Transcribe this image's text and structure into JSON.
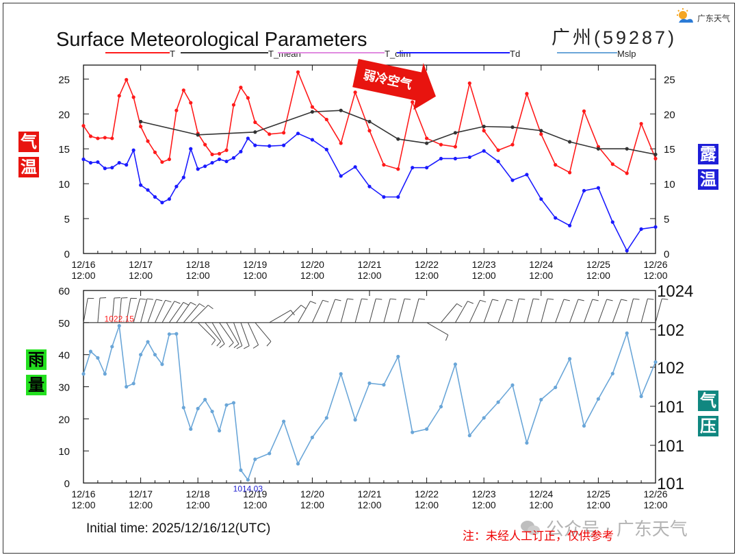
{
  "branding": {
    "logo_text": "广东天气",
    "watermark_text": "公众号 · 广东天气",
    "note": "注：未经人工订正，仅供参考",
    "initial_time": "Initial time: 2025/12/16/12(UTC)"
  },
  "labels": {
    "temp": [
      "气",
      "温"
    ],
    "dew": [
      "露",
      "温"
    ],
    "rain": [
      "雨",
      "量"
    ],
    "pres": [
      "气",
      "压"
    ],
    "arrow": "弱冷空气"
  },
  "colors": {
    "T": "#ff1a1a",
    "T_mean": "#333333",
    "T_clim": "#e08ae0",
    "Td": "#1a1aff",
    "Mslp": "#6aa6d8"
  },
  "chart_data": [
    {
      "type": "line",
      "title": "Surface Meteorological Parameters",
      "station": "广州(59287)",
      "legend": [
        "T",
        "T_mean",
        "T_clim",
        "Td",
        "Mslp"
      ],
      "x_ticks": [
        "12/16\n12:00",
        "12/17\n12:00",
        "12/18\n12:00",
        "12/19\n12:00",
        "12/20\n12:00",
        "12/21\n12:00",
        "12/22\n12:00",
        "12/23\n12:00",
        "12/24\n12:00",
        "12/25\n12:00",
        "12/26\n12:00"
      ],
      "x_range": [
        0,
        240
      ],
      "ylim": [
        0,
        27
      ],
      "y_ticks": [
        0,
        5,
        10,
        15,
        20,
        25
      ],
      "series": [
        {
          "name": "T",
          "x": [
            0,
            3,
            6,
            9,
            12,
            15,
            18,
            21,
            24,
            27,
            30,
            33,
            36,
            39,
            42,
            45,
            48,
            51,
            54,
            57,
            60,
            63,
            66,
            69,
            72,
            78,
            84,
            90,
            96,
            102,
            108,
            114,
            120,
            126,
            132,
            138,
            144,
            150,
            156,
            162,
            168,
            174,
            180,
            186,
            192,
            198,
            204,
            210,
            216,
            222,
            228,
            234,
            240
          ],
          "values": [
            18.3,
            16.8,
            16.5,
            16.6,
            16.5,
            22.6,
            24.9,
            22.4,
            18.2,
            16.1,
            14.5,
            13.1,
            13.5,
            20.5,
            23.4,
            21.6,
            17.2,
            15.6,
            14.2,
            14.3,
            14.8,
            21.3,
            23.8,
            22.3,
            18.8,
            17.1,
            17.3,
            26.0,
            21.0,
            19.2,
            15.8,
            23.1,
            17.6,
            12.7,
            12.1,
            21.7,
            16.5,
            15.6,
            15.3,
            24.4,
            17.6,
            14.8,
            15.6,
            22.9,
            17.1,
            12.7,
            11.6,
            20.4,
            15.3,
            12.8,
            11.5,
            18.6,
            13.6
          ]
        },
        {
          "name": "T_mean",
          "x": [
            24,
            48,
            72,
            96,
            108,
            120,
            132,
            144,
            156,
            168,
            180,
            192,
            204,
            216,
            228,
            240
          ],
          "values": [
            18.9,
            17.0,
            17.4,
            20.3,
            20.5,
            18.9,
            16.4,
            15.8,
            17.3,
            18.2,
            18.1,
            17.6,
            16.0,
            15.0,
            15.0,
            14.2
          ]
        },
        {
          "name": "Td",
          "x": [
            0,
            3,
            6,
            9,
            12,
            15,
            18,
            21,
            24,
            27,
            30,
            33,
            36,
            39,
            42,
            45,
            48,
            51,
            54,
            57,
            60,
            63,
            66,
            69,
            72,
            78,
            84,
            90,
            96,
            102,
            108,
            114,
            120,
            126,
            132,
            138,
            144,
            150,
            156,
            162,
            168,
            174,
            180,
            186,
            192,
            198,
            204,
            210,
            216,
            222,
            228,
            234,
            240
          ],
          "values": [
            13.5,
            13.0,
            13.1,
            12.2,
            12.3,
            13.0,
            12.7,
            14.8,
            9.8,
            9.1,
            8.1,
            7.3,
            7.8,
            9.6,
            10.9,
            15.0,
            12.1,
            12.5,
            13.0,
            13.5,
            13.2,
            13.7,
            14.6,
            16.5,
            15.5,
            15.4,
            15.5,
            17.2,
            16.3,
            14.9,
            11.1,
            12.4,
            9.6,
            8.1,
            8.1,
            12.3,
            12.3,
            13.6,
            13.6,
            13.8,
            14.7,
            13.2,
            10.5,
            11.3,
            7.8,
            5.1,
            4.0,
            9.0,
            9.4,
            4.5,
            0.4,
            3.5,
            3.8
          ]
        }
      ]
    },
    {
      "type": "line",
      "x_ticks": [
        "12/16\n12:00",
        "12/17\n12:00",
        "12/18\n12:00",
        "12/19\n12:00",
        "12/20\n12:00",
        "12/21\n12:00",
        "12/22\n12:00",
        "12/23\n12:00",
        "12/24\n12:00",
        "12/25\n12:00",
        "12/26\n12:00"
      ],
      "x_range": [
        0,
        240
      ],
      "ylim": [
        0,
        60
      ],
      "y_ticks": [
        0,
        10,
        20,
        30,
        40,
        50,
        60
      ],
      "right_ticks": [
        "1024",
        "102",
        "102",
        "101",
        "101",
        "101"
      ],
      "annotations": [
        {
          "text": "1022.15",
          "x": 15,
          "color": "#ff2020"
        },
        {
          "text": "1014.03",
          "x": 69,
          "color": "#2020d0"
        }
      ],
      "series": [
        {
          "name": "Mslp",
          "x": [
            0,
            3,
            6,
            9,
            12,
            15,
            18,
            21,
            24,
            27,
            30,
            33,
            36,
            39,
            42,
            45,
            48,
            51,
            54,
            57,
            60,
            63,
            66,
            69,
            72,
            78,
            84,
            90,
            96,
            102,
            108,
            114,
            120,
            126,
            132,
            138,
            144,
            150,
            156,
            162,
            168,
            174,
            180,
            186,
            192,
            198,
            204,
            210,
            216,
            222,
            228,
            234,
            240
          ],
          "values": [
            34,
            41,
            39,
            34,
            42.5,
            49,
            30,
            31,
            40,
            44,
            40,
            37,
            46.4,
            46.5,
            23.5,
            16.8,
            23.2,
            26,
            22.3,
            16.3,
            24.3,
            25,
            4,
            1,
            7.4,
            9.2,
            19.2,
            6,
            14.2,
            20.3,
            34,
            19.7,
            31.1,
            30.6,
            39.4,
            15.8,
            16.8,
            23.8,
            37,
            14.8,
            20.3,
            25.2,
            30.5,
            12.5,
            26,
            29.8,
            38.7,
            17.8,
            26.2,
            34.1,
            46.7,
            27,
            37.7
          ]
        },
        {
          "name": "wind_barbs",
          "x": [
            0,
            6,
            12,
            15,
            18,
            21,
            24,
            27,
            30,
            33,
            36,
            39,
            42,
            45,
            48,
            51,
            54,
            57,
            60,
            63,
            66,
            69,
            72,
            78,
            84,
            90,
            96,
            102,
            108,
            114,
            120,
            126,
            132,
            138,
            144,
            150,
            156,
            162,
            168,
            174,
            180,
            186,
            192,
            198,
            204,
            210,
            216,
            222,
            228,
            234,
            240
          ],
          "direction_deg": [
            10,
            5,
            5,
            5,
            10,
            15,
            15,
            20,
            25,
            30,
            35,
            35,
            40,
            45,
            135,
            140,
            150,
            145,
            150,
            160,
            160,
            155,
            140,
            60,
            45,
            30,
            25,
            20,
            15,
            15,
            15,
            15,
            15,
            15,
            120,
            40,
            30,
            25,
            20,
            20,
            15,
            15,
            15,
            20,
            20,
            20,
            20,
            20,
            15,
            15,
            15
          ]
        }
      ]
    }
  ]
}
